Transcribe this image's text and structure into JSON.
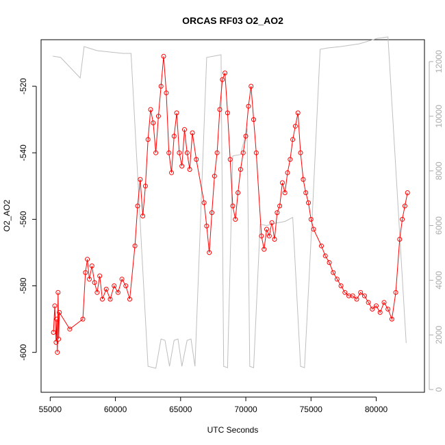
{
  "chart_data": {
    "type": "scatter",
    "title": "ORCAS RF03 O2_AO2",
    "xlabel": "UTC Seconds",
    "ylabel": "O2_AO2",
    "xlim": [
      54300,
      83700
    ],
    "ylim": [
      -612,
      -506
    ],
    "y2lim": [
      -100,
      12800
    ],
    "x_ticks": [
      55000,
      60000,
      65000,
      70000,
      75000,
      80000
    ],
    "x_tick_labels": [
      "55000",
      "60000",
      "65000",
      "70000",
      "75000",
      "80000"
    ],
    "y_ticks": [
      -600,
      -580,
      -560,
      -540,
      -520
    ],
    "y_tick_labels": [
      "-600",
      "-580",
      "-560",
      "-540",
      "-520"
    ],
    "y2_ticks": [
      0,
      2000,
      4000,
      6000,
      8000,
      10000,
      12000
    ],
    "y2_tick_labels": [
      "0",
      "2000",
      "4000",
      "6000",
      "8000",
      "10000",
      "12000"
    ],
    "colors": {
      "o2": "#ff0000",
      "altitude": "#bebebe",
      "axis": "#000000",
      "right_axis": "#aaaaaa"
    },
    "grid": false,
    "series": [
      {
        "role": "o2",
        "marker": "open-circle",
        "points": [
          [
            55250,
            -594
          ],
          [
            55350,
            -586
          ],
          [
            55450,
            -597
          ],
          [
            55500,
            -590
          ],
          [
            55550,
            -600
          ],
          [
            55600,
            -582
          ],
          [
            55650,
            -596
          ],
          [
            55700,
            -588
          ],
          [
            56500,
            -593
          ],
          [
            57500,
            -590
          ],
          [
            57700,
            -576
          ],
          [
            57850,
            -572
          ],
          [
            58000,
            -578
          ],
          [
            58200,
            -574
          ],
          [
            58400,
            -579
          ],
          [
            58600,
            -582
          ],
          [
            58800,
            -577
          ],
          [
            59000,
            -584
          ],
          [
            59300,
            -581
          ],
          [
            59600,
            -584
          ],
          [
            59900,
            -580
          ],
          [
            60200,
            -582
          ],
          [
            60500,
            -578
          ],
          [
            60800,
            -580
          ],
          [
            61100,
            -584
          ],
          [
            61500,
            -568
          ],
          [
            61700,
            -556
          ],
          [
            61900,
            -548
          ],
          [
            62100,
            -559
          ],
          [
            62300,
            -550
          ],
          [
            62500,
            -536
          ],
          [
            62700,
            -527
          ],
          [
            62900,
            -531
          ],
          [
            63100,
            -540
          ],
          [
            63300,
            -529
          ],
          [
            63500,
            -520
          ],
          [
            63700,
            -511
          ],
          [
            63900,
            -522
          ],
          [
            64100,
            -540
          ],
          [
            64300,
            -546
          ],
          [
            64500,
            -535
          ],
          [
            64700,
            -528
          ],
          [
            64900,
            -540
          ],
          [
            65100,
            -544
          ],
          [
            65300,
            -533
          ],
          [
            65500,
            -540
          ],
          [
            65700,
            -545
          ],
          [
            65900,
            -534
          ],
          [
            66200,
            -542
          ],
          [
            66800,
            -555
          ],
          [
            67000,
            -562
          ],
          [
            67200,
            -570
          ],
          [
            67400,
            -558
          ],
          [
            67600,
            -547
          ],
          [
            67800,
            -540
          ],
          [
            68000,
            -527
          ],
          [
            68200,
            -518
          ],
          [
            68400,
            -516
          ],
          [
            68600,
            -528
          ],
          [
            68800,
            -542
          ],
          [
            69000,
            -556
          ],
          [
            69200,
            -560
          ],
          [
            69400,
            -552
          ],
          [
            69600,
            -545
          ],
          [
            69800,
            -540
          ],
          [
            70000,
            -535
          ],
          [
            70200,
            -526
          ],
          [
            70400,
            -520
          ],
          [
            70600,
            -530
          ],
          [
            70800,
            -540
          ],
          [
            71200,
            -565
          ],
          [
            71400,
            -569
          ],
          [
            71600,
            -563
          ],
          [
            71800,
            -565
          ],
          [
            72000,
            -561
          ],
          [
            72200,
            -566
          ],
          [
            72400,
            -558
          ],
          [
            72600,
            -556
          ],
          [
            72800,
            -549
          ],
          [
            73000,
            -552
          ],
          [
            73200,
            -546
          ],
          [
            73400,
            -542
          ],
          [
            73600,
            -536
          ],
          [
            73800,
            -532
          ],
          [
            74000,
            -528
          ],
          [
            74200,
            -540
          ],
          [
            74400,
            -548
          ],
          [
            74600,
            -552
          ],
          [
            74800,
            -555
          ],
          [
            75000,
            -560
          ],
          [
            75200,
            -563
          ],
          [
            75800,
            -568
          ],
          [
            76100,
            -571
          ],
          [
            76400,
            -573
          ],
          [
            76700,
            -576
          ],
          [
            77000,
            -578
          ],
          [
            77300,
            -580
          ],
          [
            77600,
            -582
          ],
          [
            77900,
            -583
          ],
          [
            78200,
            -583
          ],
          [
            78500,
            -584
          ],
          [
            78800,
            -582
          ],
          [
            79100,
            -583
          ],
          [
            79400,
            -585
          ],
          [
            79700,
            -587
          ],
          [
            80000,
            -586
          ],
          [
            80300,
            -588
          ],
          [
            80600,
            -585
          ],
          [
            80900,
            -587
          ],
          [
            81200,
            -590
          ],
          [
            81500,
            -582
          ],
          [
            81800,
            -566
          ],
          [
            82000,
            -560
          ],
          [
            82200,
            -556
          ],
          [
            82400,
            -552
          ]
        ]
      },
      {
        "role": "altitude",
        "axis": "right",
        "points": [
          [
            55200,
            12200
          ],
          [
            55800,
            12150
          ],
          [
            57300,
            11400
          ],
          [
            57600,
            12550
          ],
          [
            58600,
            12400
          ],
          [
            59600,
            12350
          ],
          [
            60600,
            12300
          ],
          [
            61200,
            12300
          ],
          [
            62500,
            850
          ],
          [
            63100,
            780
          ],
          [
            63500,
            1850
          ],
          [
            63800,
            1800
          ],
          [
            64150,
            850
          ],
          [
            64500,
            1800
          ],
          [
            64800,
            1850
          ],
          [
            65100,
            850
          ],
          [
            65500,
            1800
          ],
          [
            65800,
            1850
          ],
          [
            66100,
            850
          ],
          [
            67000,
            12150
          ],
          [
            68100,
            12250
          ],
          [
            68300,
            850
          ],
          [
            68600,
            800
          ],
          [
            69000,
            8550
          ],
          [
            69600,
            8600
          ],
          [
            70100,
            9550
          ],
          [
            70300,
            850
          ],
          [
            70600,
            800
          ],
          [
            71100,
            6050
          ],
          [
            71600,
            6000
          ],
          [
            72400,
            6100
          ],
          [
            73000,
            6150
          ],
          [
            73600,
            6300
          ],
          [
            74200,
            850
          ],
          [
            74500,
            800
          ],
          [
            75100,
            6400
          ],
          [
            75700,
            12450
          ],
          [
            76300,
            12500
          ],
          [
            77300,
            12550
          ],
          [
            78700,
            12650
          ],
          [
            80100,
            12850
          ],
          [
            80900,
            12900
          ],
          [
            82300,
            1700
          ]
        ]
      }
    ]
  }
}
